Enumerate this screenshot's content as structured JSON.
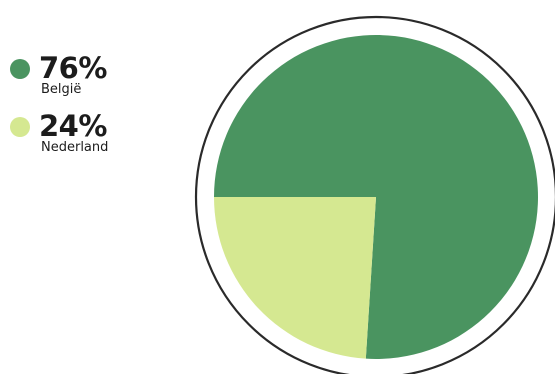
{
  "colors": {
    "primary": "#4a9460",
    "secondary": "#d5e891",
    "ring": "#2a2a2a"
  },
  "chart_data": {
    "type": "pie",
    "title": "",
    "slices": [
      {
        "label": "België",
        "value": 76,
        "value_label": "76%",
        "color": "#4a9460"
      },
      {
        "label": "Nederland",
        "value": 24,
        "value_label": "24%",
        "color": "#d5e891"
      }
    ],
    "legend_placement": "top-left"
  }
}
